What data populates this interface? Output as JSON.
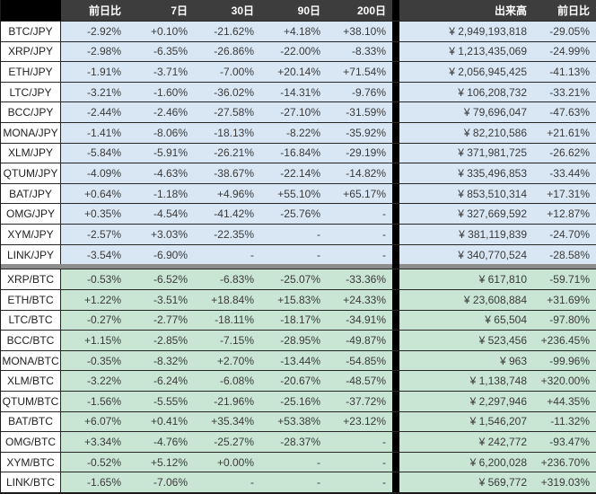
{
  "chart_data": {
    "type": "table",
    "columns": [
      "",
      "前日比",
      "7日",
      "30日",
      "90日",
      "200日",
      "出来高",
      "前日比"
    ],
    "sections": [
      {
        "id": "jpy",
        "rows": [
          [
            "BTC/JPY",
            "-2.92%",
            "+0.10%",
            "-21.62%",
            "+4.18%",
            "+38.10%",
            "¥ 2,949,193,818",
            "-29.05%"
          ],
          [
            "XRP/JPY",
            "-2.98%",
            "-6.35%",
            "-26.86%",
            "-22.00%",
            "-8.33%",
            "¥ 1,213,435,069",
            "-24.99%"
          ],
          [
            "ETH/JPY",
            "-1.91%",
            "-3.71%",
            "-7.00%",
            "+20.14%",
            "+71.54%",
            "¥ 2,056,945,425",
            "-41.13%"
          ],
          [
            "LTC/JPY",
            "-3.21%",
            "-1.60%",
            "-36.02%",
            "-14.31%",
            "-9.76%",
            "¥ 106,208,732",
            "-33.21%"
          ],
          [
            "BCC/JPY",
            "-2.44%",
            "-2.46%",
            "-27.58%",
            "-27.10%",
            "-31.59%",
            "¥ 79,696,047",
            "-47.63%"
          ],
          [
            "MONA/JPY",
            "-1.41%",
            "-8.06%",
            "-18.13%",
            "-8.22%",
            "-35.92%",
            "¥ 82,210,586",
            "+21.61%"
          ],
          [
            "XLM/JPY",
            "-5.84%",
            "-5.91%",
            "-26.21%",
            "-16.84%",
            "-29.19%",
            "¥ 371,981,725",
            "-26.62%"
          ],
          [
            "QTUM/JPY",
            "-4.09%",
            "-4.63%",
            "-38.67%",
            "-22.14%",
            "-14.82%",
            "¥ 335,496,853",
            "-33.44%"
          ],
          [
            "BAT/JPY",
            "+0.64%",
            "-1.18%",
            "+4.96%",
            "+55.10%",
            "+65.17%",
            "¥ 853,510,314",
            "+17.31%"
          ],
          [
            "OMG/JPY",
            "+0.35%",
            "-4.54%",
            "-41.42%",
            "-25.76%",
            "-",
            "¥ 327,669,592",
            "+12.87%"
          ],
          [
            "XYM/JPY",
            "-2.57%",
            "+3.03%",
            "-22.35%",
            "-",
            "-",
            "¥ 381,119,839",
            "-24.70%"
          ],
          [
            "LINK/JPY",
            "-3.54%",
            "-6.90%",
            "-",
            "-",
            "-",
            "¥ 340,770,524",
            "-28.58%"
          ]
        ]
      },
      {
        "id": "btc",
        "rows": [
          [
            "XRP/BTC",
            "-0.53%",
            "-6.52%",
            "-6.83%",
            "-25.07%",
            "-33.36%",
            "¥ 617,810",
            "-59.71%"
          ],
          [
            "ETH/BTC",
            "+1.22%",
            "-3.51%",
            "+18.84%",
            "+15.83%",
            "+24.33%",
            "¥ 23,608,884",
            "+31.69%"
          ],
          [
            "LTC/BTC",
            "-0.27%",
            "-2.77%",
            "-18.11%",
            "-18.17%",
            "-34.91%",
            "¥ 65,504",
            "-97.80%"
          ],
          [
            "BCC/BTC",
            "+1.15%",
            "-2.85%",
            "-7.15%",
            "-28.95%",
            "-49.87%",
            "¥ 523,456",
            "+236.45%"
          ],
          [
            "MONA/BTC",
            "-0.35%",
            "-8.32%",
            "+2.70%",
            "-13.44%",
            "-54.85%",
            "¥ 963",
            "-99.96%"
          ],
          [
            "XLM/BTC",
            "-3.22%",
            "-6.24%",
            "-6.08%",
            "-20.67%",
            "-48.57%",
            "¥ 1,138,748",
            "+320.00%"
          ],
          [
            "QTUM/BTC",
            "-1.56%",
            "-5.55%",
            "-21.96%",
            "-25.16%",
            "-37.72%",
            "¥ 2,297,946",
            "+44.35%"
          ],
          [
            "BAT/BTC",
            "+6.07%",
            "+0.41%",
            "+35.34%",
            "+53.38%",
            "+23.12%",
            "¥ 1,546,207",
            "-11.32%"
          ],
          [
            "OMG/BTC",
            "+3.34%",
            "-4.76%",
            "-25.27%",
            "-28.37%",
            "-",
            "¥ 242,772",
            "-93.47%"
          ],
          [
            "XYM/BTC",
            "-0.52%",
            "+5.12%",
            "+0.00%",
            "-",
            "-",
            "¥ 6,200,028",
            "+236.70%"
          ],
          [
            "LINK/BTC",
            "-1.65%",
            "-7.06%",
            "-",
            "-",
            "-",
            "¥ 569,772",
            "+319.03%"
          ]
        ]
      }
    ]
  },
  "colors": {
    "header_bg": "#3d3d3d",
    "corner_bg": "#000000",
    "separator_col": "#000000",
    "jpy_row_bg": "#d9e7f4",
    "btc_row_bg": "#c9e5d4",
    "label_bg": "#ffffff",
    "grid_line": "#262626",
    "section_divider": "#8d8d8d",
    "header_text": "#ffffff",
    "cell_text": "#3a3a3a"
  }
}
